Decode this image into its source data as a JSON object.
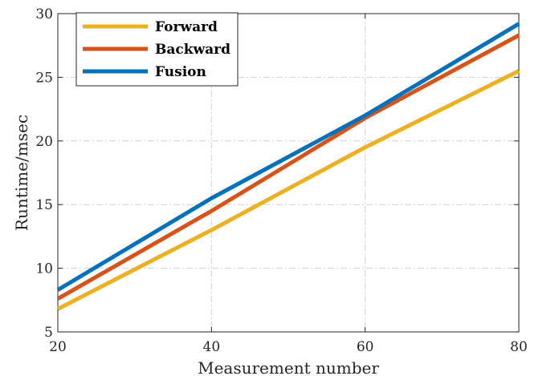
{
  "chart_data": {
    "type": "line",
    "xlabel": "Measurement number",
    "ylabel": "Runtime/msec",
    "xlim": [
      20,
      80
    ],
    "ylim": [
      5,
      30
    ],
    "xticks": [
      20,
      40,
      60,
      80
    ],
    "yticks": [
      5,
      10,
      15,
      20,
      25,
      30
    ],
    "grid": true,
    "legend_position": "top-left",
    "series": [
      {
        "name": "Forward",
        "color": "#EDB120",
        "x": [
          20,
          40,
          60,
          80
        ],
        "y": [
          6.8,
          13.0,
          19.5,
          25.5
        ]
      },
      {
        "name": "Backward",
        "color": "#D95319",
        "x": [
          20,
          40,
          60,
          80
        ],
        "y": [
          7.6,
          14.5,
          21.8,
          28.3
        ]
      },
      {
        "name": "Fusion",
        "color": "#0072BD",
        "x": [
          20,
          40,
          60,
          80
        ],
        "y": [
          8.3,
          15.5,
          22.0,
          29.2
        ]
      }
    ]
  }
}
